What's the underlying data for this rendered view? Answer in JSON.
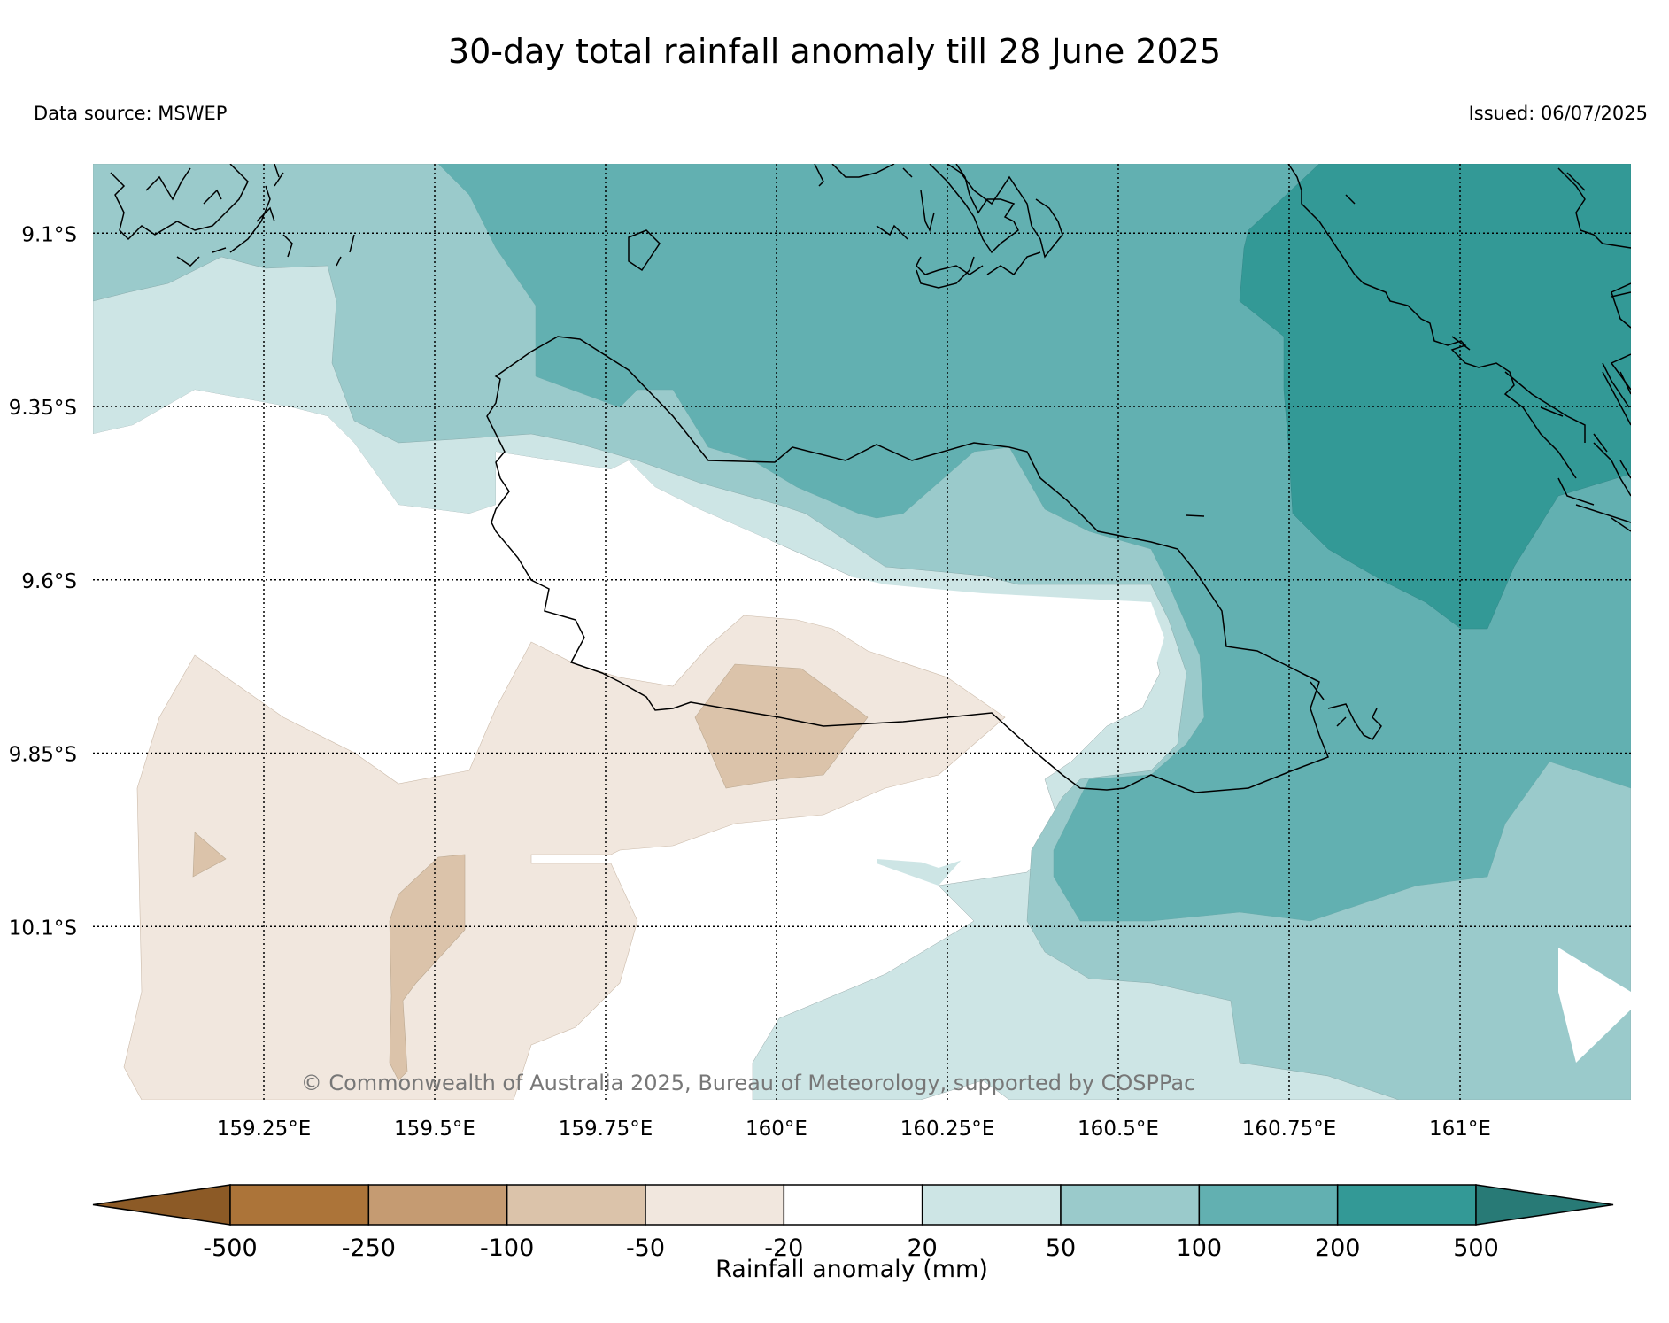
{
  "title": "30-day total rainfall anomaly till 28 June 2025",
  "data_source": "Data source: MSWEP",
  "issued": "Issued: 06/07/2025",
  "copyright": "© Commonwealth of Australia 2025, Bureau of Meteorology, supported by COSPPac",
  "map": {
    "lat_labels": [
      "9.1°S",
      "9.35°S",
      "9.6°S",
      "9.85°S",
      "10.1°S"
    ],
    "lon_labels": [
      "159.25°E",
      "159.5°E",
      "159.75°E",
      "160°E",
      "160.25°E",
      "160.5°E",
      "160.75°E",
      "161°E"
    ],
    "lat_values": [
      -9.1,
      -9.35,
      -9.6,
      -9.85,
      -10.1
    ],
    "lon_values": [
      159.25,
      159.5,
      159.75,
      160.0,
      160.25,
      160.5,
      160.75,
      161.0
    ],
    "extent": {
      "lon_min": 159.0,
      "lon_max": 161.25,
      "lat_min": -10.35,
      "lat_max": -9.0
    },
    "grid": true,
    "gridline_style": "dotted"
  },
  "legend": {
    "title": "Rainfall anomaly (mm)",
    "tick_labels": [
      "-500",
      "-250",
      "-100",
      "-50",
      "-20",
      "20",
      "50",
      "100",
      "200",
      "500"
    ],
    "bins": [
      {
        "range": "< -500",
        "color": "#8c5a26"
      },
      {
        "range": "-500 to -250",
        "color": "#ac7439"
      },
      {
        "range": "-250 to -100",
        "color": "#c59b72"
      },
      {
        "range": "-100 to -50",
        "color": "#dbc3aa"
      },
      {
        "range": "-50 to -20",
        "color": "#f1e7de"
      },
      {
        "range": "-20 to 20",
        "color": "#ffffff"
      },
      {
        "range": "20 to 50",
        "color": "#cde5e5"
      },
      {
        "range": "50 to 100",
        "color": "#9acacb"
      },
      {
        "range": "100 to 200",
        "color": "#62b0b1"
      },
      {
        "range": "200 to 500",
        "color": "#339996"
      },
      {
        "range": "> 500",
        "color": "#287a76"
      }
    ]
  },
  "colors": {
    "dry_light": "#f1e7de",
    "dry_mid": "#dbc3aa",
    "wet_20_50": "#cde5e5",
    "wet_50_100": "#9acacb",
    "wet_100_200": "#62b0b1",
    "wet_200_500": "#339996"
  }
}
